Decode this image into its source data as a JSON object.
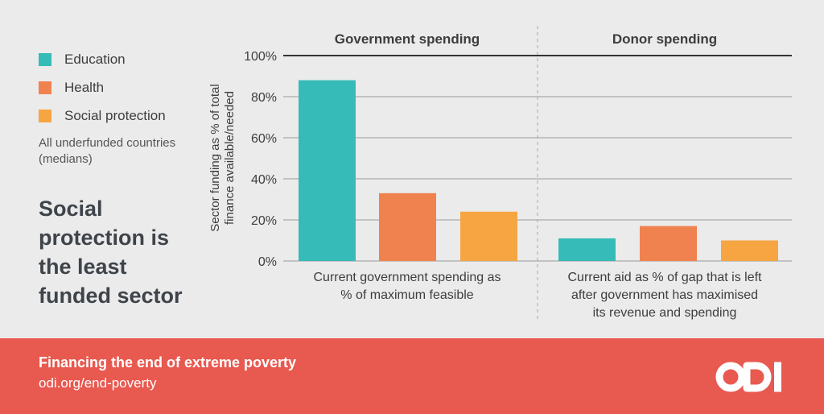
{
  "legend": [
    {
      "label": "Education",
      "color": "#36bbb8"
    },
    {
      "label": "Health",
      "color": "#f0824f"
    },
    {
      "label": "Social protection",
      "color": "#f6a542"
    }
  ],
  "note": "All underfunded countries (medians)",
  "headline": "Social protection is the least funded sector",
  "chart_data": {
    "type": "bar",
    "ylabel": "Sector funding as % of total finance available/needed",
    "ylim": [
      0,
      100
    ],
    "yticks": [
      "0%",
      "20%",
      "40%",
      "60%",
      "80%",
      "100%"
    ],
    "panels": [
      {
        "title": "Government spending",
        "xlabel": "Current government spending as % of maximum feasible",
        "categories": [
          "Education",
          "Health",
          "Social protection"
        ],
        "values": [
          88,
          33,
          24
        ]
      },
      {
        "title": "Donor spending",
        "xlabel": "Current aid as % of gap that is left after government has maximised its revenue and spending",
        "categories": [
          "Education",
          "Health",
          "Social protection"
        ],
        "values": [
          11,
          17,
          10
        ]
      }
    ],
    "grid": true,
    "legend_placement": "left"
  },
  "footer": {
    "title": "Financing the end of extreme poverty",
    "url": "odi.org/end-poverty",
    "logo_text": "ODI"
  }
}
